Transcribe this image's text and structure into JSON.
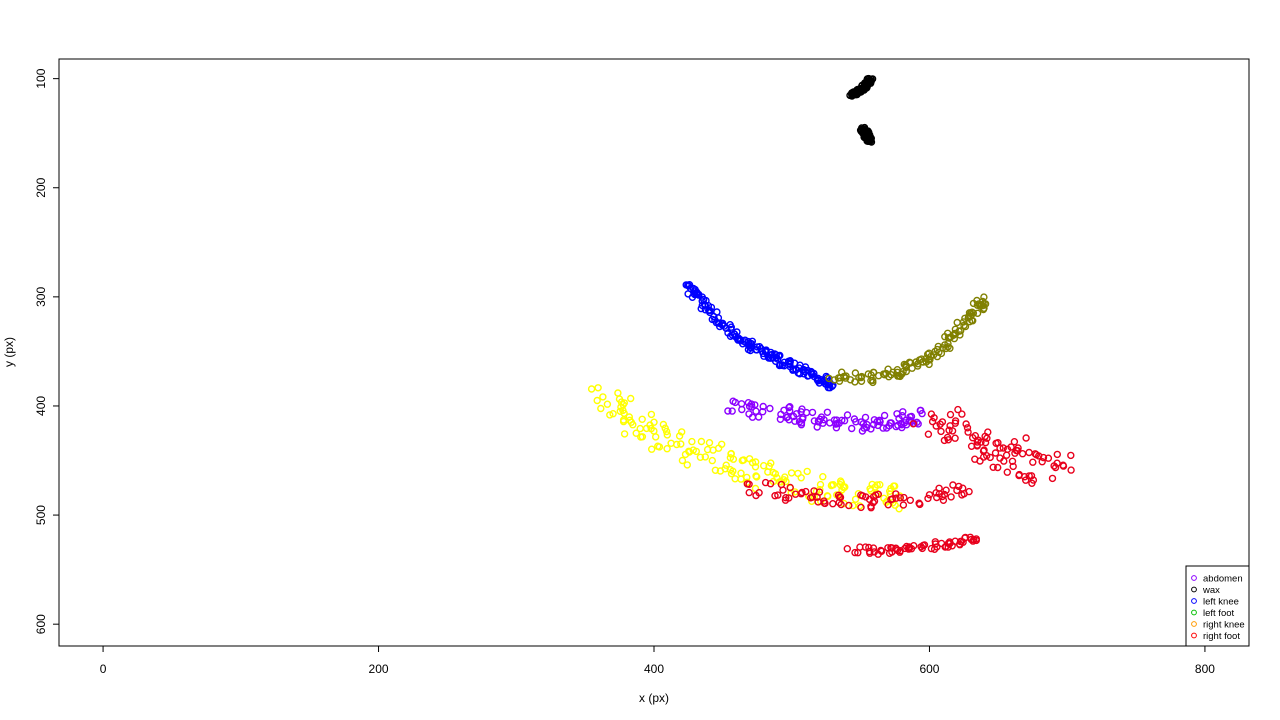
{
  "chart_data": {
    "type": "scatter",
    "title": "",
    "xlabel": "x (px)",
    "ylabel": "y (px)",
    "xlim": [
      -32,
      832
    ],
    "ylim": [
      620,
      82
    ],
    "y_reversed": true,
    "grid": false,
    "x_ticks": [
      0,
      200,
      400,
      600,
      800
    ],
    "y_ticks": [
      100,
      200,
      300,
      400,
      500,
      600
    ],
    "x_tick_labels": [
      "0",
      "200",
      "400",
      "600",
      "800"
    ],
    "y_tick_labels": [
      "100",
      "200",
      "300",
      "400",
      "500",
      "600"
    ],
    "legend_position": "bottom-right",
    "legend": [
      {
        "label": "abdomen",
        "color": "#8B00FF"
      },
      {
        "label": "wax",
        "color": "#000000"
      },
      {
        "label": "left knee",
        "color": "#0000FF"
      },
      {
        "label": "left foot",
        "color": "#00C000"
      },
      {
        "label": "right knee",
        "color": "#FF9900"
      },
      {
        "label": "right foot",
        "color": "#FF0000"
      }
    ],
    "plotted_colors": {
      "wax": "#000000",
      "left_knee": "#0000FF",
      "olive_cluster": "#808000",
      "abdomen": "#8B00FF",
      "yellow_cluster": "#FFFF00",
      "right_foot": "#E8001C"
    },
    "series": [
      {
        "key": "wax_upper",
        "color": "#000000",
        "x": [
          543,
          546,
          548,
          551,
          553,
          555,
          557
        ],
        "y": [
          114,
          113,
          112,
          110,
          107,
          104,
          101
        ]
      },
      {
        "key": "wax_lower",
        "color": "#000000",
        "x": [
          551,
          553,
          555,
          557,
          554
        ],
        "y": [
          146,
          150,
          153,
          157,
          148
        ]
      },
      {
        "key": "left_knee",
        "color": "#0000FF",
        "x": [
          425,
          430,
          440,
          450,
          460,
          470,
          480,
          490,
          500,
          510,
          520,
          527
        ],
        "y": [
          290,
          298,
          312,
          326,
          336,
          345,
          352,
          358,
          363,
          369,
          375,
          380
        ]
      },
      {
        "key": "olive",
        "color": "#808000",
        "x": [
          530,
          550,
          570,
          585,
          600,
          610,
          620,
          630,
          638
        ],
        "y": [
          373,
          375,
          372,
          365,
          357,
          347,
          334,
          318,
          305
        ]
      },
      {
        "key": "abdomen",
        "color": "#8B00FF",
        "x": [
          460,
          480,
          500,
          520,
          540,
          560,
          580,
          590
        ],
        "y": [
          400,
          405,
          408,
          412,
          415,
          417,
          415,
          410
        ]
      },
      {
        "key": "yellow",
        "color": "#FFFF00",
        "x": [
          360,
          375,
          390,
          410,
          430,
          450,
          470,
          490,
          510,
          530,
          550,
          570
        ],
        "y": [
          390,
          405,
          420,
          432,
          442,
          452,
          460,
          467,
          473,
          478,
          482,
          485
        ]
      },
      {
        "key": "right_foot_main",
        "color": "#E8001C",
        "x": [
          600,
          615,
          630,
          645,
          660,
          675,
          690
        ],
        "y": [
          410,
          420,
          432,
          440,
          448,
          455,
          460
        ]
      },
      {
        "key": "right_foot_band",
        "color": "#E8001C",
        "x": [
          470,
          500,
          530,
          560,
          590,
          620
        ],
        "y": [
          475,
          480,
          486,
          488,
          485,
          478
        ]
      },
      {
        "key": "right_foot_lower",
        "color": "#E8001C",
        "x": [
          545,
          570,
          590,
          610,
          630
        ],
        "y": [
          532,
          533,
          530,
          527,
          522
        ]
      }
    ]
  }
}
